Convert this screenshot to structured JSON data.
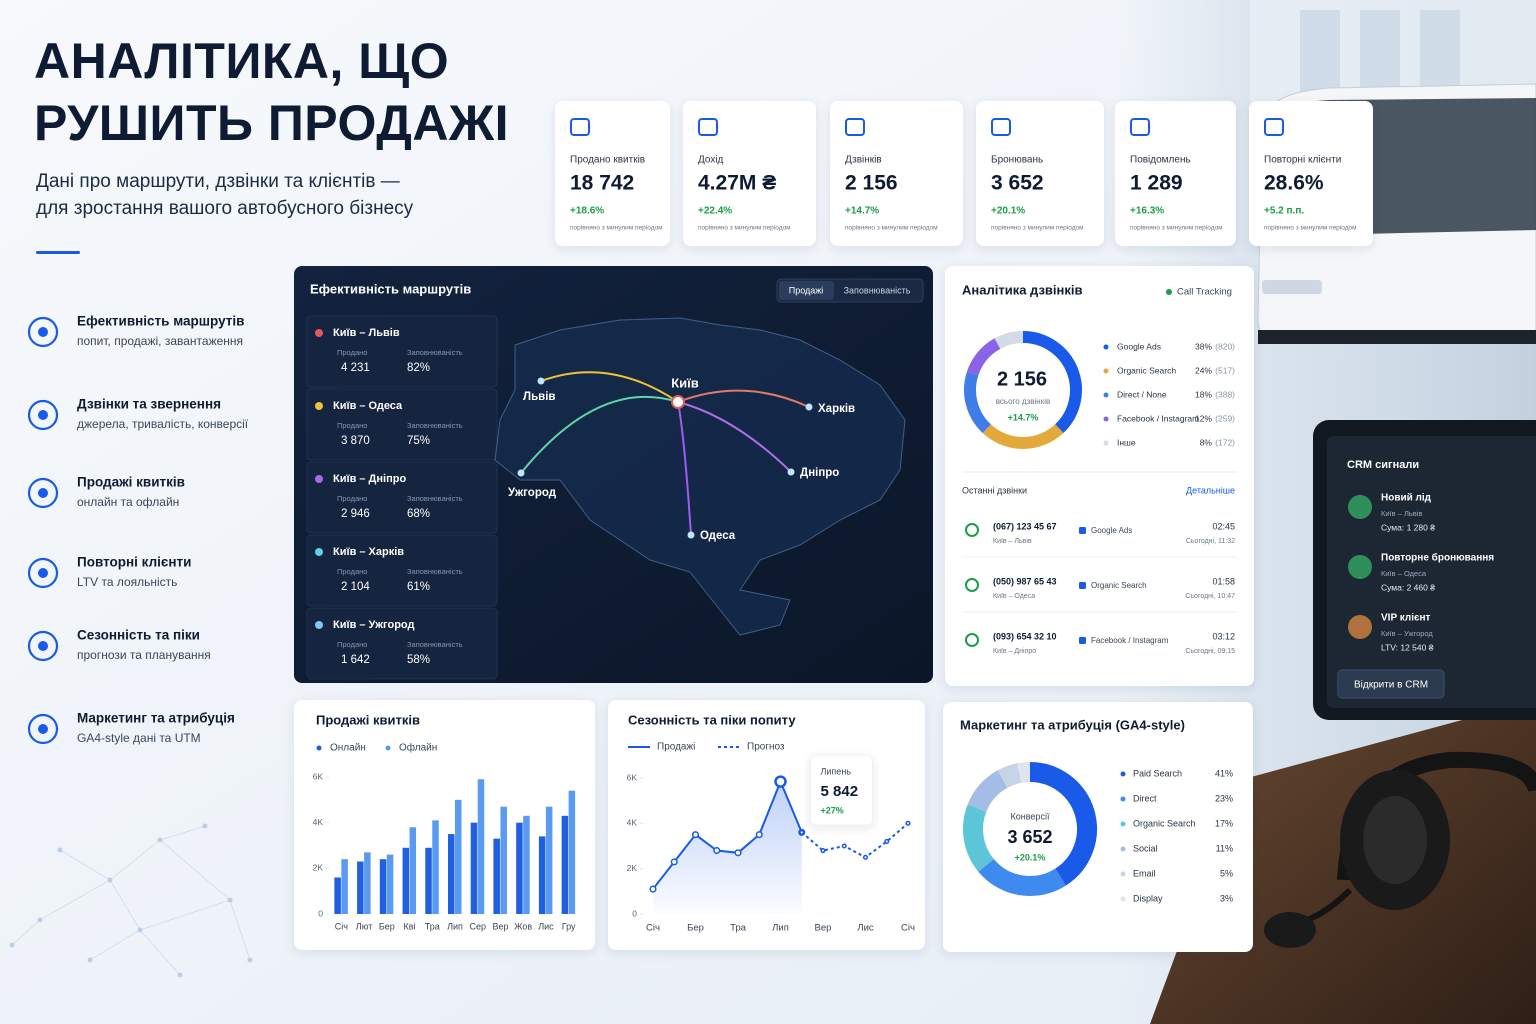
{
  "header": {
    "title_lines": [
      "АНАЛІТИКА, ЩО",
      "РУШИТЬ ПРОДАЖІ"
    ],
    "subtitle_lines": [
      "Дані про маршрути, дзвінки та клієнтів —",
      "для зростання вашого автобусного бізнесу"
    ]
  },
  "features": [
    {
      "title": "Ефективність маршрутів",
      "subtitle": "попит, продажі, завантаження"
    },
    {
      "title": "Дзвінки та звернення",
      "subtitle": "джерела, тривалість, конверсії"
    },
    {
      "title": "Продажі квитків",
      "subtitle": "онлайн та офлайн"
    },
    {
      "title": "Повторні клієнти",
      "subtitle": "LTV та лояльність"
    },
    {
      "title": "Сезонність та піки",
      "subtitle": "прогнози та планування"
    },
    {
      "title": "Маркетинг та атрибуція",
      "subtitle": "GA4-style дані та UTM"
    }
  ],
  "kpis": [
    {
      "label": "Продано квитків",
      "value": "18 742",
      "change": "+18.6%",
      "note": "порівняно з минулим періодом"
    },
    {
      "label": "Дохід",
      "value": "4.27M ₴",
      "change": "+22.4%",
      "note": "порівняно з минулим періодом"
    },
    {
      "label": "Дзвінків",
      "value": "2 156",
      "change": "+14.7%",
      "note": "порівняно з минулим періодом"
    },
    {
      "label": "Бронювань",
      "value": "3 652",
      "change": "+20.1%",
      "note": "порівняно з минулим періодом"
    },
    {
      "label": "Повідомлень",
      "value": "1 289",
      "change": "+16.3%",
      "note": "порівняно з минулим періодом"
    },
    {
      "label": "Повторні клієнти",
      "value": "28.6%",
      "change": "+5.2 п.п.",
      "note": "порівняно з минулим періодом"
    }
  ],
  "routes_panel": {
    "title": "Ефективність маршрутів",
    "tabs": [
      "Продажі",
      "Заповнюваність"
    ],
    "routes": [
      {
        "name": "Київ – Львів",
        "sold_label": "Продано",
        "sold": "4 231",
        "fill_label": "Заповнюваність",
        "fill": "82%"
      },
      {
        "name": "Київ – Одеса",
        "sold_label": "Продано",
        "sold": "3 870",
        "fill_label": "Заповнюваність",
        "fill": "75%"
      },
      {
        "name": "Київ – Дніпро",
        "sold_label": "Продано",
        "sold": "2 946",
        "fill_label": "Заповнюваність",
        "fill": "68%"
      },
      {
        "name": "Київ – Харків",
        "sold_label": "Продано",
        "sold": "2 104",
        "fill_label": "Заповнюваність",
        "fill": "61%"
      },
      {
        "name": "Київ – Ужгород",
        "sold_label": "Продано",
        "sold": "1 642",
        "fill_label": "Заповнюваність",
        "fill": "58%"
      }
    ],
    "cities": [
      "Київ",
      "Львів",
      "Харків",
      "Дніпро",
      "Одеса",
      "Ужгород"
    ]
  },
  "calls_panel": {
    "title": "Аналітика дзвінків",
    "badge": "Call Tracking",
    "recent_title": "Останні дзвінки",
    "more": "Детальніше",
    "calls": [
      {
        "phone": "(067) 123 45 67",
        "route": "Київ – Львів",
        "source": "Google Ads",
        "duration": "02:45",
        "time": "Сьогодні, 11:32"
      },
      {
        "phone": "(050) 987 65 43",
        "route": "Київ – Одеса",
        "source": "Organic Search",
        "duration": "01:58",
        "time": "Сьогодні, 10:47"
      },
      {
        "phone": "(093) 654 32 10",
        "route": "Київ – Дніпро",
        "source": "Facebook / Instagram",
        "duration": "03:12",
        "time": "Сьогодні, 09:15"
      }
    ]
  },
  "crm_panel": {
    "title": "CRM сигнали",
    "items": [
      {
        "title": "Новий лід",
        "route": "Київ – Львів",
        "amount": "Сума: 1 280 ₴"
      },
      {
        "title": "Повторне бронювання",
        "route": "Київ – Одеса",
        "amount": "Сума: 2 460 ₴"
      },
      {
        "title": "VIP клієнт",
        "route": "Київ – Ужгород",
        "amount": "LTV: 12 540 ₴"
      }
    ],
    "button": "Відкрити в CRM"
  },
  "chart_data": [
    {
      "type": "donut",
      "center_value": "2 156",
      "center_label": "всього дзвінків",
      "center_change": "+14.7%",
      "categories": [
        "Google Ads",
        "Organic Search",
        "Direct / None",
        "Facebook / Instagram",
        "Інше"
      ],
      "values": [
        38,
        24,
        18,
        12,
        8
      ],
      "value_labels": [
        "38%",
        "24%",
        "18%",
        "12%",
        "8%"
      ],
      "counts": [
        "(820)",
        "(517)",
        "(388)",
        "(259)",
        "(172)"
      ],
      "colors": [
        "#1a5ae8",
        "#e3a93a",
        "#3f7ee8",
        "#8a63e6",
        "#d3dbe8"
      ]
    },
    {
      "type": "bar",
      "title": "Продажі квитків",
      "categories": [
        "Січ",
        "Лют",
        "Бер",
        "Кві",
        "Тра",
        "Лип",
        "Сер",
        "Вер",
        "Жов",
        "Лис",
        "Гру"
      ],
      "series": [
        {
          "name": "Онлайн",
          "color": "#1f5fe0",
          "values": [
            1600,
            2300,
            2400,
            2900,
            2900,
            3500,
            4000,
            3300,
            4000,
            3400,
            4300
          ]
        },
        {
          "name": "Офлайн",
          "color": "#5a9af0",
          "values": [
            2400,
            2700,
            2600,
            3800,
            4100,
            5000,
            5900,
            4700,
            4300,
            4700,
            5400
          ]
        }
      ],
      "ylim": [
        0,
        6000
      ],
      "yticks": [
        0,
        {
          "value": 2000,
          "label": "2K"
        },
        {
          "value": 4000,
          "label": "4K"
        },
        {
          "value": 6000,
          "label": "6K"
        }
      ]
    },
    {
      "type": "line",
      "title": "Сезонність та піки попиту",
      "categories": [
        "Січ",
        null,
        "Бер",
        null,
        "Тра",
        null,
        "Лип",
        null,
        "Вер",
        null,
        "Лис",
        null,
        "Січ"
      ],
      "series": [
        {
          "name": "Продажі",
          "color": "#1a5ae8",
          "dashed": false,
          "values": [
            1100,
            2300,
            3500,
            2800,
            2700,
            3500,
            5842,
            3600,
            null,
            null,
            null,
            null,
            null
          ],
          "value_labels": [
            null,
            null,
            null,
            null,
            null,
            null,
            "5 842",
            null,
            null,
            null,
            null,
            null,
            null
          ]
        },
        {
          "name": "Прогноз",
          "color": "#1a5ae8",
          "dashed": true,
          "values": [
            null,
            null,
            null,
            null,
            null,
            null,
            null,
            3600,
            2800,
            3000,
            2500,
            3200,
            4000
          ]
        }
      ],
      "tooltip": {
        "title": "Липень",
        "change": "+27%"
      },
      "ylim": [
        0,
        6000
      ],
      "yticks": [
        0,
        {
          "value": 2000,
          "label": "2K"
        },
        {
          "value": 4000,
          "label": "4K"
        },
        {
          "value": 6000,
          "label": "6K"
        }
      ]
    },
    {
      "type": "donut",
      "title": "Маркетинг та атрибуція (GA4-style)",
      "center_label": "Конверсії",
      "center_value": "3 652",
      "center_change": "+20.1%",
      "categories": [
        "Paid Search",
        "Direct",
        "Organic Search",
        "Social",
        "Email",
        "Display"
      ],
      "values": [
        41,
        23,
        17,
        11,
        5,
        3
      ],
      "value_labels": [
        "41%",
        "23%",
        "17%",
        "11%",
        "5%",
        "3%"
      ],
      "colors": [
        "#1a5ae8",
        "#3f8aee",
        "#5cc6d8",
        "#a5bde6",
        "#c7d3e6",
        "#dfe5ee"
      ]
    }
  ]
}
